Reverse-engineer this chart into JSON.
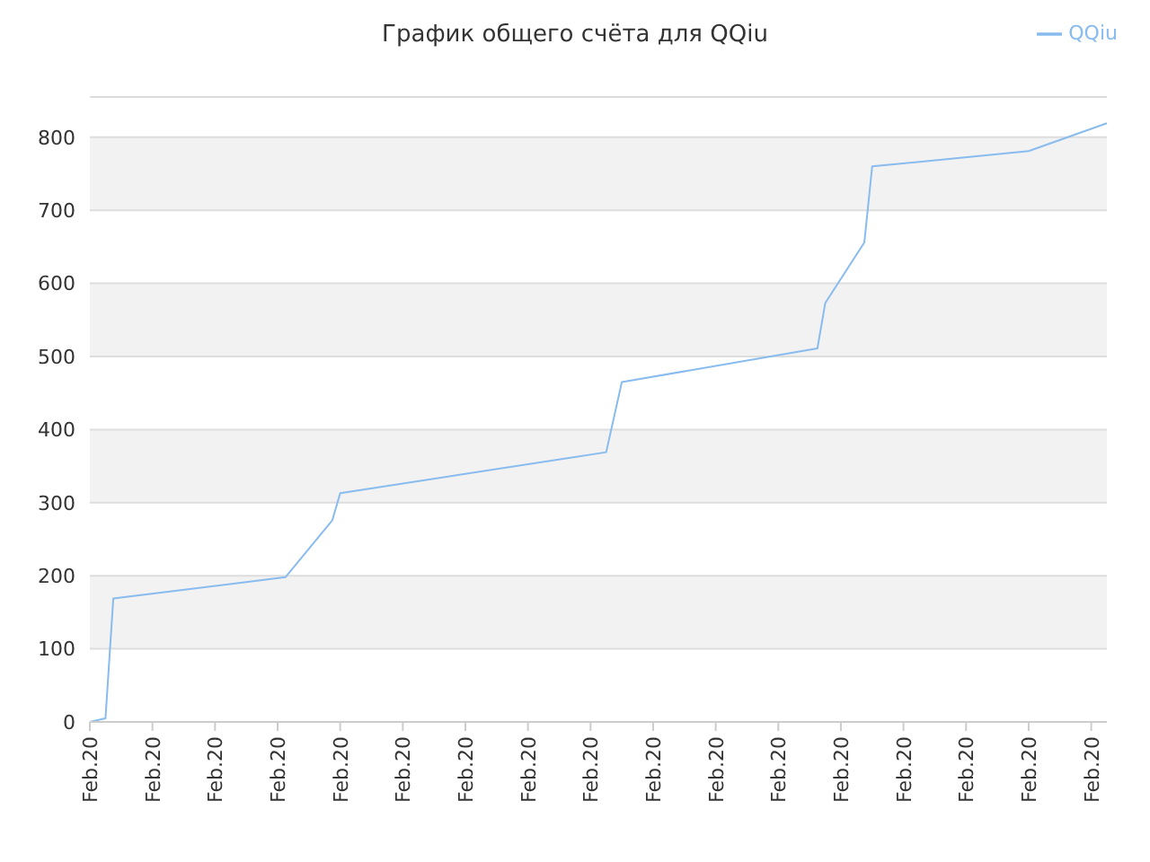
{
  "chart_data": {
    "type": "line",
    "title": "График общего счёта для QQiu",
    "categories": [
      "Feb.20",
      null,
      null,
      null,
      null,
      null,
      null,
      null,
      "Feb.20",
      null,
      null,
      null,
      null,
      null,
      null,
      null,
      "Feb.20",
      null,
      null,
      null,
      null,
      null,
      null,
      null,
      "Feb.20",
      null,
      null,
      null,
      null,
      null,
      null,
      null,
      "Feb.20",
      null,
      null,
      null,
      null,
      null,
      null,
      null,
      "Feb.20",
      null,
      null,
      null,
      null,
      null,
      null,
      null,
      "Feb.20",
      null,
      null,
      null,
      null,
      null,
      null,
      null,
      "Feb.20",
      null,
      null,
      null,
      null,
      null,
      null,
      null,
      "Feb.20",
      null,
      null,
      null,
      null,
      null,
      null,
      null,
      "Feb.20",
      null,
      null,
      null,
      null,
      null,
      null,
      null,
      "Feb.20",
      null,
      null,
      null,
      null,
      null,
      null,
      null,
      "Feb.20",
      null,
      null,
      null,
      null,
      null,
      null,
      null,
      "Feb.20",
      null,
      null,
      null,
      null,
      null,
      null,
      null,
      "Feb.20",
      null,
      null,
      null,
      null,
      null,
      null,
      null,
      "Feb.20",
      null,
      null,
      null,
      null,
      null,
      null,
      null,
      "Feb.20",
      null,
      null,
      null,
      null,
      null,
      null,
      null,
      "Feb.20",
      null,
      null
    ],
    "series": [
      {
        "name": "QQiu",
        "color": "#88bbee",
        "values": [
          0,
          null,
          5,
          169,
          null,
          null,
          null,
          null,
          null,
          null,
          null,
          null,
          null,
          null,
          null,
          null,
          null,
          null,
          null,
          null,
          null,
          null,
          null,
          null,
          null,
          198,
          null,
          null,
          null,
          null,
          null,
          276,
          313,
          null,
          null,
          null,
          null,
          null,
          null,
          null,
          null,
          null,
          null,
          null,
          null,
          null,
          null,
          null,
          null,
          null,
          null,
          null,
          null,
          null,
          null,
          null,
          null,
          null,
          null,
          null,
          null,
          null,
          null,
          null,
          null,
          null,
          369,
          null,
          465,
          null,
          null,
          null,
          null,
          null,
          null,
          null,
          null,
          null,
          null,
          null,
          null,
          null,
          null,
          null,
          null,
          null,
          null,
          null,
          null,
          null,
          null,
          null,
          null,
          511,
          573,
          null,
          null,
          null,
          null,
          656,
          760,
          null,
          null,
          null,
          null,
          null,
          null,
          null,
          null,
          null,
          null,
          null,
          null,
          null,
          null,
          null,
          null,
          null,
          null,
          null,
          781,
          null,
          null,
          null,
          null,
          null,
          null,
          null,
          null,
          null,
          819
        ]
      }
    ],
    "ylim": [
      0,
      855
    ],
    "yticks": [
      0,
      100,
      200,
      300,
      400,
      500,
      600,
      700,
      800
    ],
    "grid": "y",
    "legend": "top right",
    "marker": "none",
    "line_style": "solid"
  }
}
